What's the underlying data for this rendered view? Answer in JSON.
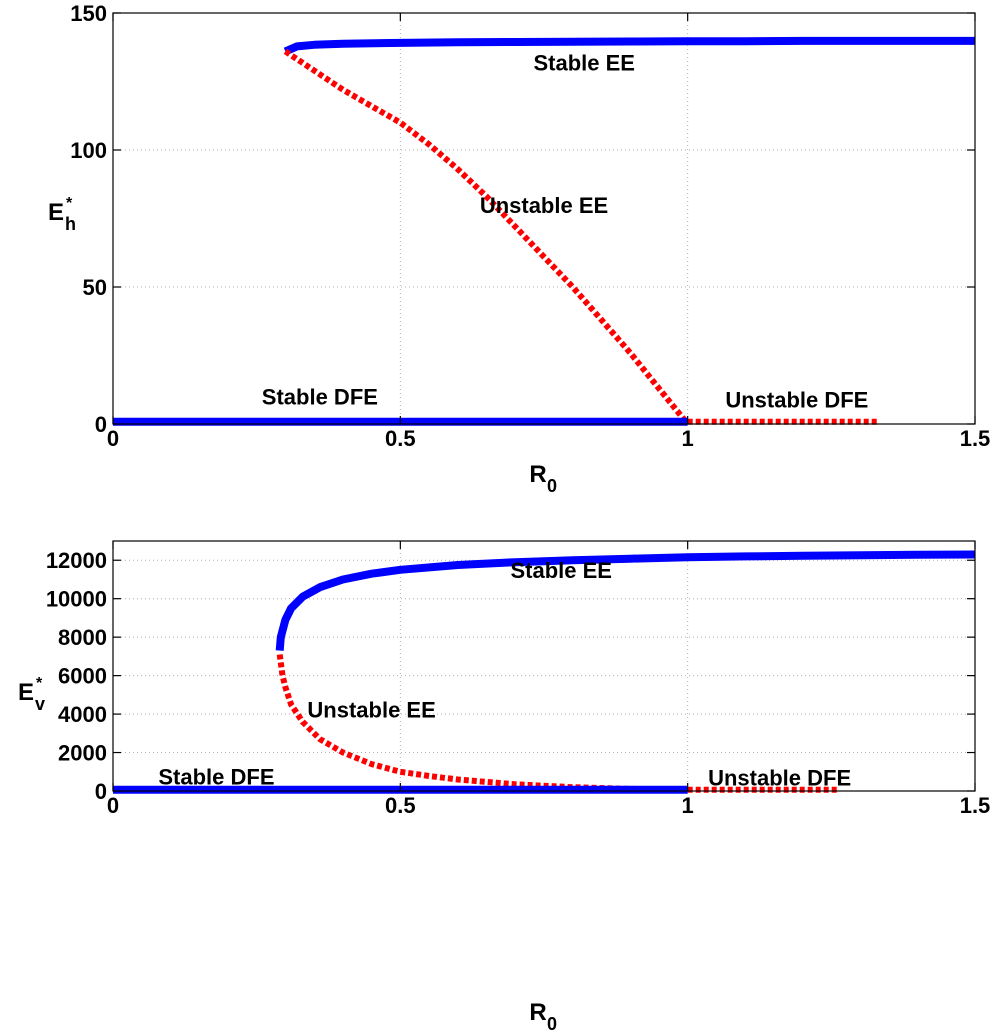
{
  "chart_data": [
    {
      "type": "line",
      "xlabel": "R",
      "xlabel_sub": "0",
      "ylabel": "E",
      "ylabel_sup": "*",
      "ylabel_sub": "h",
      "xlim": [
        0,
        1.5
      ],
      "ylim": [
        0,
        150
      ],
      "xticks": [
        0,
        0.5,
        1,
        1.5
      ],
      "xtick_labels": [
        "0",
        "0.5",
        "1",
        "1.5"
      ],
      "yticks": [
        0,
        50,
        100,
        150
      ],
      "ytick_labels": [
        "0",
        "50",
        "100",
        "150"
      ],
      "grid": true,
      "series": [
        {
          "style": "solid",
          "color": "#0000ff",
          "x": [
            0.3,
            0.32,
            0.35,
            0.4,
            0.5,
            0.6,
            0.7,
            0.8,
            0.9,
            1.0,
            1.1,
            1.2,
            1.3,
            1.4,
            1.5
          ],
          "y": [
            136,
            137.8,
            138.4,
            138.8,
            139.1,
            139.3,
            139.4,
            139.5,
            139.6,
            139.7,
            139.7,
            139.8,
            139.8,
            139.8,
            139.8
          ]
        },
        {
          "style": "dashed",
          "color": "#ff0000",
          "x": [
            0.3,
            0.35,
            0.4,
            0.45,
            0.5,
            0.55,
            0.6,
            0.65,
            0.7,
            0.75,
            0.8,
            0.85,
            0.9,
            0.95,
            1.0
          ],
          "y": [
            136,
            129,
            122,
            116,
            110,
            102,
            93,
            83,
            72,
            61,
            50,
            38,
            26,
            13,
            0
          ]
        },
        {
          "style": "solid",
          "color": "#0000ff",
          "x": [
            0,
            1
          ],
          "y": [
            0.8,
            0.8
          ]
        },
        {
          "style": "dashed",
          "color": "#ff0000",
          "x": [
            1,
            1.33
          ],
          "y": [
            0.8,
            0.8
          ]
        }
      ],
      "annotations": [
        {
          "text": "Stable EE",
          "x": 0.82,
          "y": 132
        },
        {
          "text": "Unstable EE",
          "x": 0.75,
          "y": 80
        },
        {
          "text": "Stable DFE",
          "x": 0.36,
          "y": 10
        },
        {
          "text": "Unstable DFE",
          "x": 1.19,
          "y": 9
        }
      ]
    },
    {
      "type": "line",
      "xlabel": "R",
      "xlabel_sub": "0",
      "ylabel": "E",
      "ylabel_sup": "*",
      "ylabel_sub": "v",
      "xlim": [
        0,
        1.5
      ],
      "ylim": [
        0,
        13000
      ],
      "xticks": [
        0,
        0.5,
        1,
        1.5
      ],
      "xtick_labels": [
        "0",
        "0.5",
        "1",
        "1.5"
      ],
      "yticks": [
        0,
        2000,
        4000,
        6000,
        8000,
        10000,
        12000
      ],
      "ytick_labels": [
        "0",
        "2000",
        "4000",
        "6000",
        "8000",
        "10000",
        "12000"
      ],
      "grid": true,
      "series": [
        {
          "style": "solid",
          "color": "#0000ff",
          "x": [
            0.29,
            0.292,
            0.3,
            0.31,
            0.33,
            0.36,
            0.4,
            0.45,
            0.5,
            0.6,
            0.7,
            0.8,
            0.9,
            1.0,
            1.1,
            1.2,
            1.3,
            1.4,
            1.5
          ],
          "y": [
            7300,
            8000,
            8900,
            9500,
            10100,
            10600,
            11000,
            11300,
            11500,
            11750,
            11900,
            12000,
            12080,
            12150,
            12200,
            12230,
            12260,
            12290,
            12300
          ]
        },
        {
          "style": "dashed",
          "color": "#ff0000",
          "x": [
            0.29,
            0.295,
            0.3,
            0.31,
            0.33,
            0.36,
            0.4,
            0.45,
            0.5,
            0.55,
            0.6,
            0.7,
            0.8,
            0.9,
            1.0
          ],
          "y": [
            7100,
            6000,
            5400,
            4500,
            3600,
            2700,
            2000,
            1400,
            1000,
            780,
            600,
            350,
            200,
            110,
            80
          ]
        },
        {
          "style": "solid",
          "color": "#0000ff",
          "x": [
            0,
            1
          ],
          "y": [
            60,
            60
          ]
        },
        {
          "style": "dashed",
          "color": "#ff0000",
          "x": [
            1,
            1.26
          ],
          "y": [
            60,
            60
          ]
        }
      ],
      "annotations": [
        {
          "text": "Stable EE",
          "x": 0.78,
          "y": 11500
        },
        {
          "text": "Unstable EE",
          "x": 0.45,
          "y": 4250
        },
        {
          "text": "Stable DFE",
          "x": 0.18,
          "y": 750
        },
        {
          "text": "Unstable DFE",
          "x": 1.16,
          "y": 700
        }
      ]
    }
  ]
}
